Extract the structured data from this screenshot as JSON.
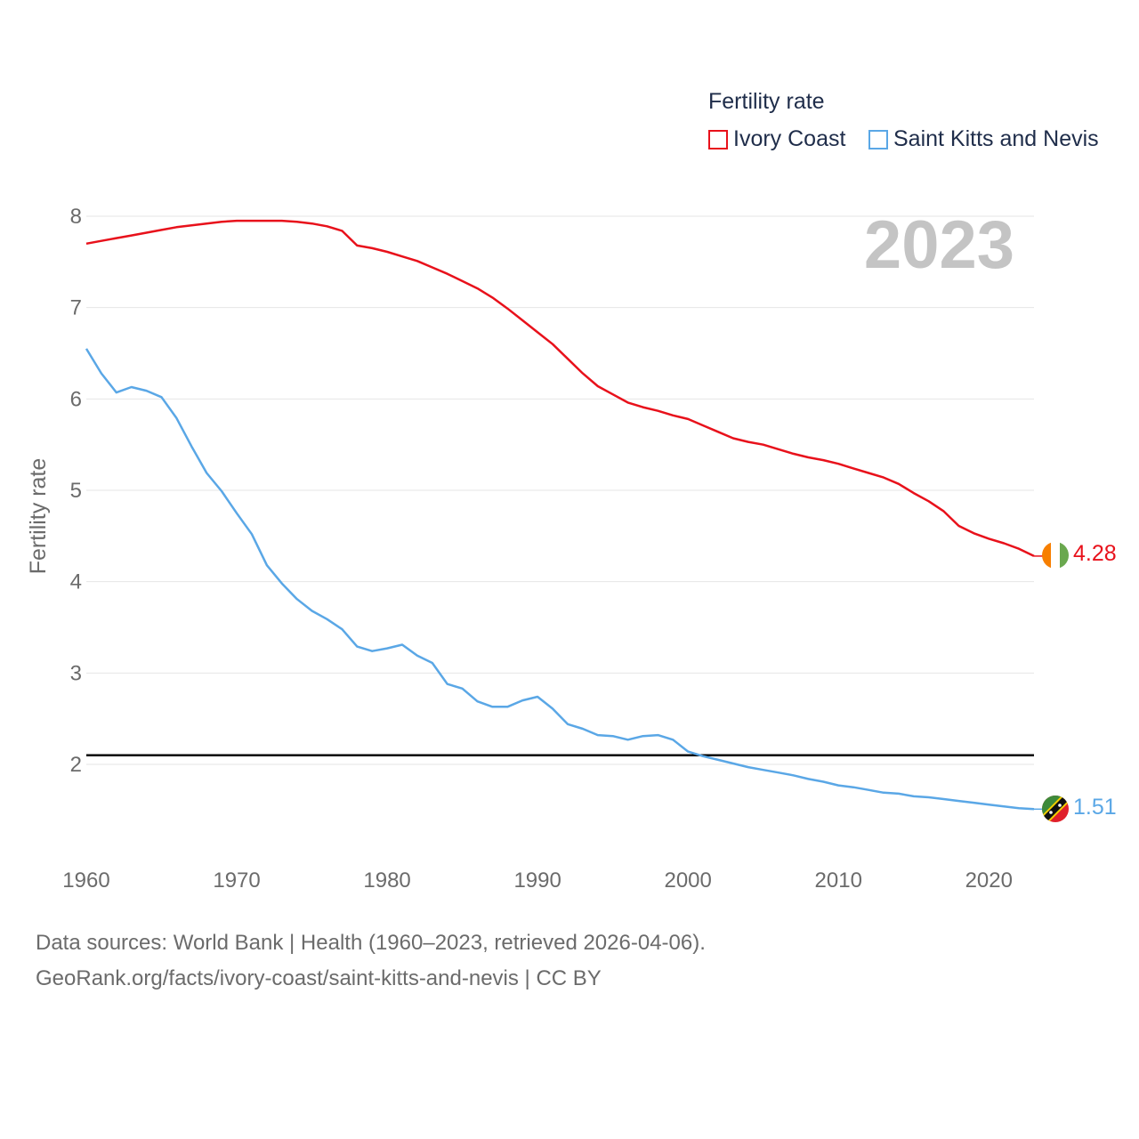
{
  "legend": {
    "title": "Fertility rate",
    "items": [
      {
        "name": "Ivory Coast",
        "color": "#e8111b"
      },
      {
        "name": "Saint Kitts and Nevis",
        "color": "#5aa7e6"
      }
    ]
  },
  "year_stamp": "2023",
  "footer": {
    "line1": "Data sources: World Bank | Health (1960–2023, retrieved 2026-04-06).",
    "line2": "GeoRank.org/facts/ivory-coast/saint-kitts-and-nevis | CC BY"
  },
  "flags": {
    "ivory_coast": "ivory-coast-flag-icon",
    "saint_kitts": "saint-kitts-flag-icon"
  },
  "chart_data": {
    "type": "line",
    "title": "Fertility rate",
    "xlabel": "",
    "ylabel": "Fertility rate",
    "xlim": [
      1960,
      2023
    ],
    "ylim": [
      1,
      8
    ],
    "x_ticks": [
      1960,
      1970,
      1980,
      1990,
      2000,
      2010,
      2020
    ],
    "y_ticks": [
      2,
      3,
      4,
      5,
      6,
      7,
      8
    ],
    "reference_line": {
      "y": 2.1,
      "color": "#000000"
    },
    "x": [
      1960,
      1961,
      1962,
      1963,
      1964,
      1965,
      1966,
      1967,
      1968,
      1969,
      1970,
      1971,
      1972,
      1973,
      1974,
      1975,
      1976,
      1977,
      1978,
      1979,
      1980,
      1981,
      1982,
      1983,
      1984,
      1985,
      1986,
      1987,
      1988,
      1989,
      1990,
      1991,
      1992,
      1993,
      1994,
      1995,
      1996,
      1997,
      1998,
      1999,
      2000,
      2001,
      2002,
      2003,
      2004,
      2005,
      2006,
      2007,
      2008,
      2009,
      2010,
      2011,
      2012,
      2013,
      2014,
      2015,
      2016,
      2017,
      2018,
      2019,
      2020,
      2021,
      2022,
      2023
    ],
    "series": [
      {
        "name": "Ivory Coast",
        "color": "#e8111b",
        "end_label": "4.28",
        "values": [
          7.7,
          7.73,
          7.76,
          7.79,
          7.82,
          7.85,
          7.88,
          7.9,
          7.92,
          7.94,
          7.95,
          7.95,
          7.95,
          7.95,
          7.94,
          7.92,
          7.89,
          7.84,
          7.68,
          7.65,
          7.61,
          7.56,
          7.51,
          7.44,
          7.37,
          7.29,
          7.21,
          7.11,
          6.99,
          6.86,
          6.73,
          6.6,
          6.44,
          6.28,
          6.14,
          6.05,
          5.96,
          5.91,
          5.87,
          5.82,
          5.78,
          5.71,
          5.64,
          5.57,
          5.53,
          5.5,
          5.45,
          5.4,
          5.36,
          5.33,
          5.29,
          5.24,
          5.19,
          5.14,
          5.07,
          4.97,
          4.88,
          4.77,
          4.61,
          4.53,
          4.47,
          4.42,
          4.36,
          4.28
        ]
      },
      {
        "name": "Saint Kitts and Nevis",
        "color": "#5aa7e6",
        "end_label": "1.51",
        "values": [
          6.55,
          6.28,
          6.07,
          6.13,
          6.09,
          6.02,
          5.79,
          5.48,
          5.19,
          4.99,
          4.75,
          4.52,
          4.18,
          3.98,
          3.81,
          3.68,
          3.59,
          3.48,
          3.29,
          3.24,
          3.27,
          3.31,
          3.19,
          3.11,
          2.88,
          2.83,
          2.69,
          2.63,
          2.63,
          2.7,
          2.74,
          2.61,
          2.44,
          2.39,
          2.32,
          2.31,
          2.27,
          2.31,
          2.32,
          2.27,
          2.14,
          2.09,
          2.05,
          2.01,
          1.97,
          1.94,
          1.91,
          1.88,
          1.84,
          1.81,
          1.77,
          1.75,
          1.72,
          1.69,
          1.68,
          1.65,
          1.64,
          1.62,
          1.6,
          1.58,
          1.56,
          1.54,
          1.52,
          1.51
        ]
      }
    ]
  }
}
